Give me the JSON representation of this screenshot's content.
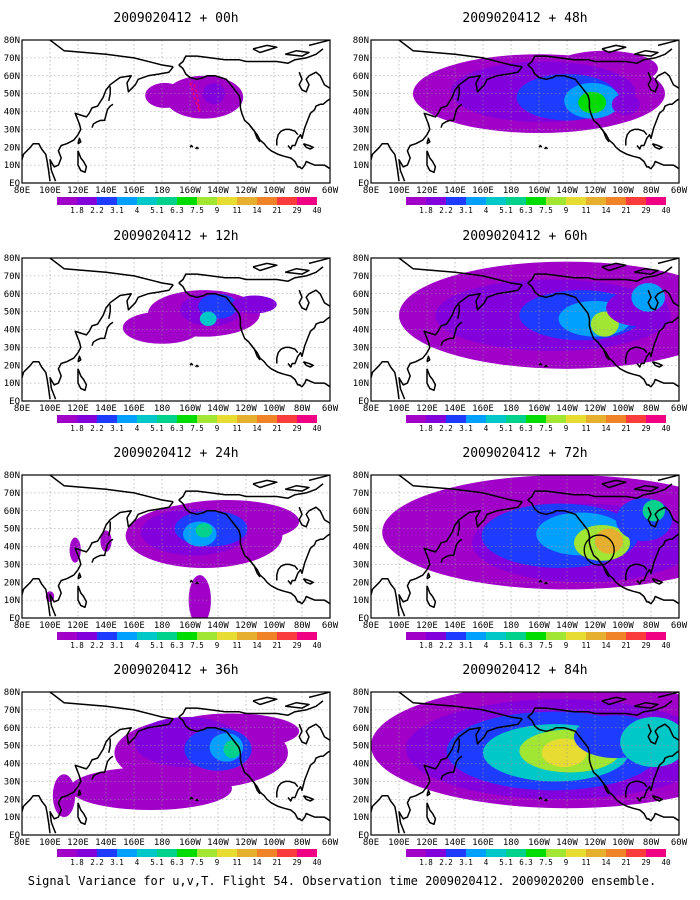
{
  "figure": {
    "caption": "Signal Variance for u,v,T. Flight 54. Observation time 2009020412. 2009020200 ensemble."
  },
  "lon_labels": [
    "80E",
    "100E",
    "120E",
    "140E",
    "160E",
    "180",
    "160W",
    "140W",
    "120W",
    "100W",
    "80W",
    "60W"
  ],
  "lat_labels": [
    "EQ",
    "10N",
    "20N",
    "30N",
    "40N",
    "50N",
    "60N",
    "70N",
    "80N"
  ],
  "colorbar": {
    "labels": [
      "1.8",
      "2.2",
      "3.1",
      "4",
      "5.1",
      "6.3",
      "7.5",
      "9",
      "11",
      "14",
      "21",
      "29",
      "40"
    ],
    "colors": [
      "#a000c8",
      "#8200dc",
      "#1e3cff",
      "#00a0ff",
      "#00c8c8",
      "#00d28c",
      "#00dc00",
      "#a0e632",
      "#e6dc32",
      "#e6af2d",
      "#f08228",
      "#fa3c3c",
      "#f00082"
    ]
  },
  "colors": {
    "coastline": "#000000",
    "grid": "#999999",
    "track": "#e8007a"
  },
  "chart_data": [
    {
      "type": "heatmap",
      "title": "2009020412 + 00h",
      "x_range": [
        "80E",
        "60W"
      ],
      "y_range": [
        "EQ",
        "80N"
      ],
      "annotation": "dropsonde flight track"
    },
    {
      "type": "heatmap",
      "title": "2009020412 + 12h",
      "x_range": [
        "80E",
        "60W"
      ],
      "y_range": [
        "EQ",
        "80N"
      ]
    },
    {
      "type": "heatmap",
      "title": "2009020412 + 24h",
      "x_range": [
        "80E",
        "60W"
      ],
      "y_range": [
        "EQ",
        "80N"
      ]
    },
    {
      "type": "heatmap",
      "title": "2009020412 + 36h",
      "x_range": [
        "80E",
        "60W"
      ],
      "y_range": [
        "EQ",
        "80N"
      ]
    },
    {
      "type": "heatmap",
      "title": "2009020412 + 48h",
      "x_range": [
        "80E",
        "60W"
      ],
      "y_range": [
        "EQ",
        "80N"
      ]
    },
    {
      "type": "heatmap",
      "title": "2009020412 + 60h",
      "x_range": [
        "80E",
        "60W"
      ],
      "y_range": [
        "EQ",
        "80N"
      ]
    },
    {
      "type": "heatmap",
      "title": "2009020412 + 72h",
      "x_range": [
        "80E",
        "60W"
      ],
      "y_range": [
        "EQ",
        "80N"
      ],
      "annotation": "circled verification region"
    },
    {
      "type": "heatmap",
      "title": "2009020412 + 84h",
      "x_range": [
        "80E",
        "60W"
      ],
      "y_range": [
        "EQ",
        "80N"
      ]
    }
  ]
}
